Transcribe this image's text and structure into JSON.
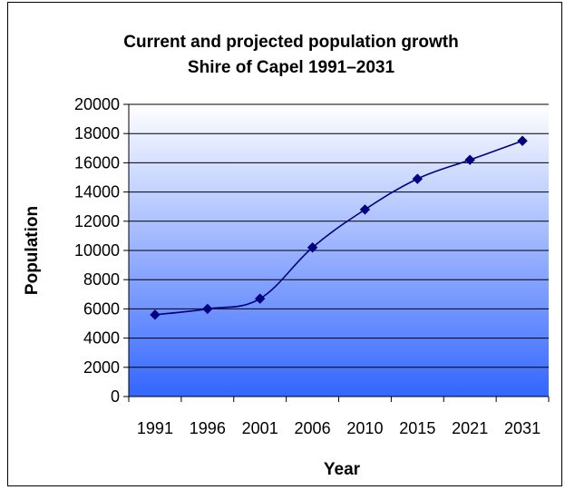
{
  "chart_data": {
    "type": "line",
    "title": "Current and projected population growth",
    "subtitle": "Shire of Capel 1991–2031",
    "xlabel": "Year",
    "ylabel": "Population",
    "categories": [
      "1991",
      "1996",
      "2001",
      "2006",
      "2010",
      "2015",
      "2021",
      "2031"
    ],
    "series": [
      {
        "values": [
          5600,
          6000,
          6700,
          10200,
          12800,
          14900,
          16200,
          17500
        ]
      }
    ],
    "ylim": [
      0,
      20000
    ],
    "yticks": [
      "0",
      "2000",
      "4000",
      "6000",
      "8000",
      "10000",
      "12000",
      "14000",
      "16000",
      "18000",
      "20000"
    ],
    "grid": true,
    "legend": "none",
    "colors": {
      "line": "#000080",
      "marker": "#000080",
      "plot_bg_top": "#ffffff",
      "plot_bg_bottom": "#3366ff",
      "grid": "#000000"
    }
  }
}
